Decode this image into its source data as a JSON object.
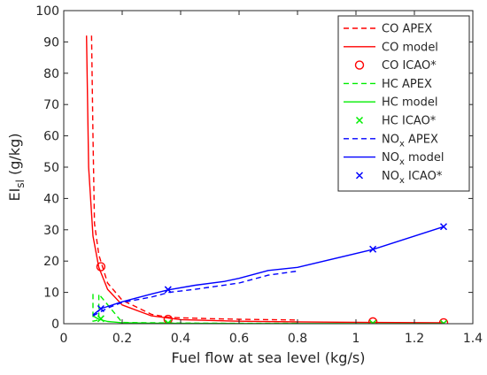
{
  "chart_data": {
    "type": "line",
    "xlabel": "Fuel flow at sea level (kg/s)",
    "ylabel_main": "EI",
    "ylabel_sub": "sl",
    "ylabel_unit": " (g/kg)",
    "xlim": [
      0,
      1.4
    ],
    "ylim": [
      0,
      100
    ],
    "xticks": [
      0,
      0.2,
      0.4,
      0.6,
      0.8,
      1,
      1.2,
      1.4
    ],
    "xtick_labels": [
      "0",
      "0.2",
      "0.4",
      "0.6",
      "0.8",
      "1",
      "1.2",
      "1.4"
    ],
    "yticks": [
      0,
      10,
      20,
      30,
      40,
      50,
      60,
      70,
      80,
      90,
      100
    ],
    "ytick_labels": [
      "0",
      "10",
      "20",
      "30",
      "40",
      "50",
      "60",
      "70",
      "80",
      "90",
      "100"
    ],
    "grid": false,
    "legend_position": "top-right",
    "series": [
      {
        "name_main": "CO",
        "name_sub": "",
        "name_rest": " APEX",
        "color": "#ff0000",
        "style": "dashed",
        "marker": "none",
        "x": [
          0.095,
          0.1,
          0.105,
          0.12,
          0.15,
          0.2,
          0.3,
          0.36,
          0.5,
          0.6,
          0.8
        ],
        "y": [
          92,
          60,
          32,
          22,
          13,
          7.5,
          3,
          2,
          1.6,
          1.4,
          1.2
        ]
      },
      {
        "name_main": "CO",
        "name_sub": "",
        "name_rest": " model",
        "color": "#ff0000",
        "style": "solid",
        "marker": "none",
        "x": [
          0.078,
          0.085,
          0.1,
          0.12,
          0.15,
          0.2,
          0.3,
          0.4,
          0.6,
          0.8,
          1.06,
          1.3
        ],
        "y": [
          92,
          50,
          28,
          18,
          11,
          6,
          2.5,
          1.3,
          0.8,
          0.6,
          0.4,
          0.3
        ]
      },
      {
        "name_main": "CO",
        "name_sub": "",
        "name_rest": " ICAO*",
        "color": "#ff0000",
        "style": "none",
        "marker": "circle",
        "x": [
          0.127,
          0.357,
          1.058,
          1.3
        ],
        "y": [
          18.2,
          1.4,
          0.6,
          0.3
        ]
      },
      {
        "name_main": "HC",
        "name_sub": "",
        "name_rest": " APEX",
        "color": "#00ee00",
        "style": "dashed",
        "marker": "none",
        "x": [
          0.1,
          0.1,
          0.12,
          0.12,
          0.2,
          0.4,
          0.6,
          0.8
        ],
        "y": [
          9.5,
          0.8,
          1.2,
          9.5,
          0.4,
          0.2,
          0.1,
          0.1
        ]
      },
      {
        "name_main": "HC",
        "name_sub": "",
        "name_rest": " model",
        "color": "#00ee00",
        "style": "solid",
        "marker": "none",
        "x": [
          0.1,
          0.12,
          0.15,
          0.2,
          0.3,
          0.4,
          0.6,
          0.8,
          1.06,
          1.3
        ],
        "y": [
          2.5,
          1.4,
          0.7,
          0.3,
          0.15,
          0.1,
          0.06,
          0.05,
          0.04,
          0.03
        ]
      },
      {
        "name_main": "HC",
        "name_sub": "",
        "name_rest": " ICAO*",
        "color": "#00ee00",
        "style": "none",
        "marker": "x",
        "x": [
          0.127,
          0.357,
          1.058,
          1.3
        ],
        "y": [
          1.6,
          0.2,
          0.1,
          0.05
        ]
      },
      {
        "name_main": "NO",
        "name_sub": "x",
        "name_rest": " APEX",
        "color": "#0000ff",
        "style": "dashed",
        "marker": "none",
        "x": [
          0.1,
          0.12,
          0.15,
          0.2,
          0.3,
          0.36,
          0.45,
          0.6,
          0.7,
          0.8
        ],
        "y": [
          2.5,
          3.5,
          5,
          6.8,
          8.5,
          10,
          11,
          13,
          15.5,
          16.8
        ]
      },
      {
        "name_main": "NO",
        "name_sub": "x",
        "name_rest": " model",
        "color": "#0000ff",
        "style": "solid",
        "marker": "none",
        "x": [
          0.1,
          0.127,
          0.2,
          0.3,
          0.357,
          0.45,
          0.55,
          0.6,
          0.7,
          0.8,
          1.058,
          1.3
        ],
        "y": [
          2.8,
          4.8,
          7,
          9.5,
          10.8,
          12.3,
          13.5,
          14.5,
          17,
          18,
          23.7,
          31
        ]
      },
      {
        "name_main": "NO",
        "name_sub": "x",
        "name_rest": " ICAO*",
        "color": "#0000ff",
        "style": "none",
        "marker": "x",
        "x": [
          0.127,
          0.357,
          1.058,
          1.3
        ],
        "y": [
          4.8,
          10.9,
          23.8,
          31
        ]
      }
    ]
  }
}
